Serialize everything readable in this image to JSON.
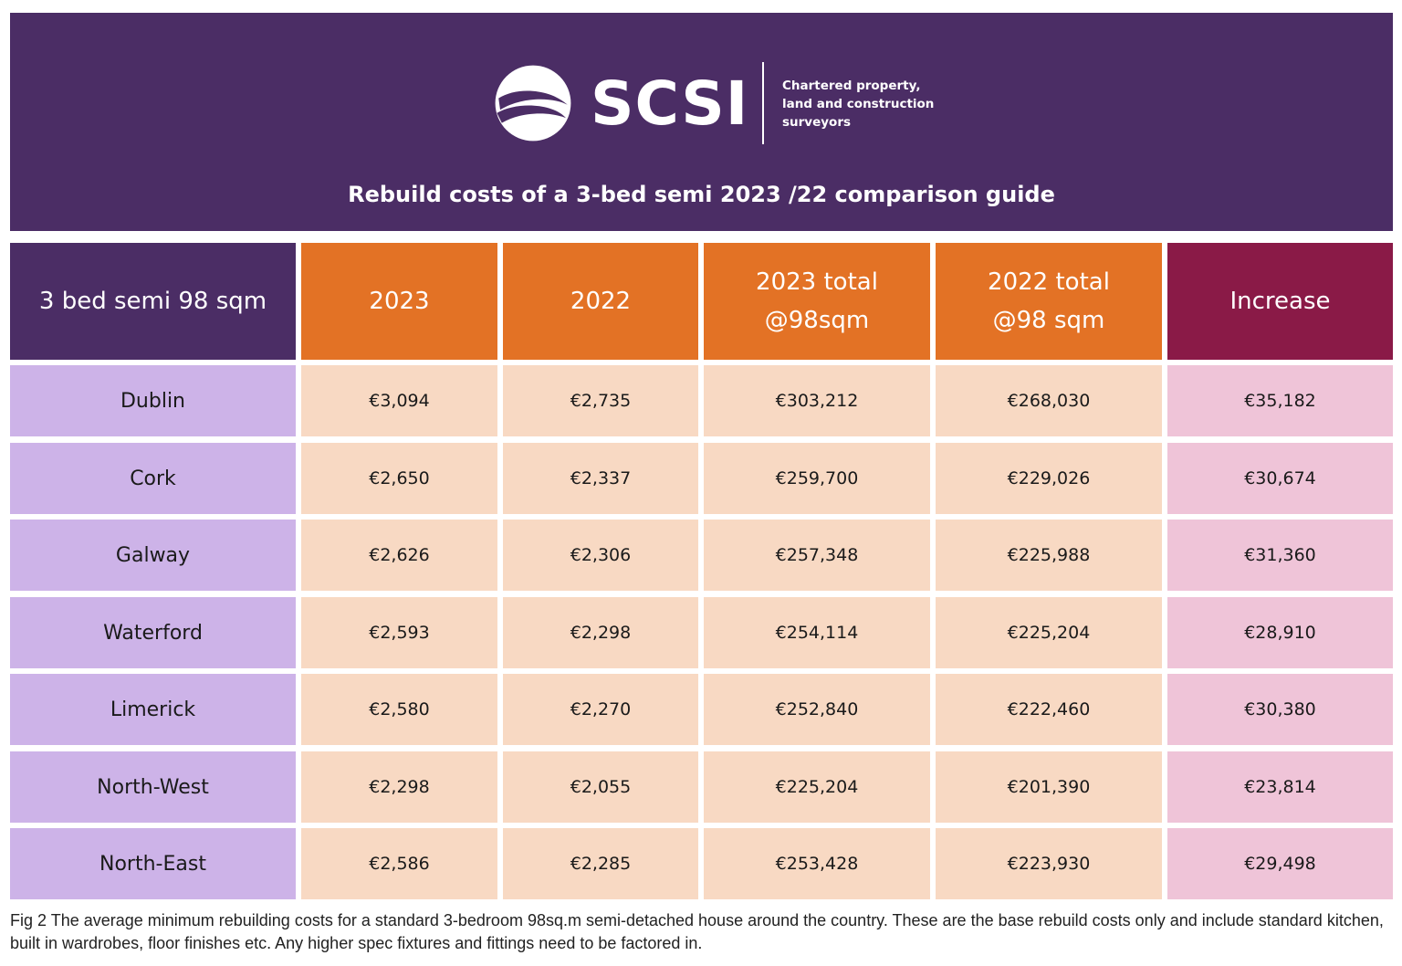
{
  "header": {
    "logo": {
      "wordmark": "SCSI",
      "tagline_lines": [
        "Chartered property,",
        "land and construction",
        "surveyors"
      ]
    },
    "title": "Rebuild costs of a 3-bed semi 2023 /22 comparison guide"
  },
  "colors": {
    "header_bg": "#4b2d65",
    "orange_header": "#e37225",
    "increase_header": "#8a1a47",
    "region_cell": "#cdb3e8",
    "value_cell": "#f8d9c3",
    "increase_cell": "#efc4d8"
  },
  "chart_data": {
    "type": "table",
    "title": "Rebuild costs of a 3-bed semi 2023 /22 comparison guide",
    "columns": [
      {
        "key": "region",
        "lines": [
          "3 bed semi 98 sqm"
        ]
      },
      {
        "key": "y2023",
        "lines": [
          "2023"
        ]
      },
      {
        "key": "y2022",
        "lines": [
          "2022"
        ]
      },
      {
        "key": "t2023",
        "lines": [
          "2023 total",
          "@98sqm"
        ]
      },
      {
        "key": "t2022",
        "lines": [
          "2022 total",
          "@98 sqm"
        ]
      },
      {
        "key": "increase",
        "lines": [
          "Increase"
        ]
      }
    ],
    "rows": [
      {
        "region": "Dublin",
        "y2023": "€3,094",
        "y2022": "€2,735",
        "t2023": "€303,212",
        "t2022": "€268,030",
        "increase": "€35,182"
      },
      {
        "region": "Cork",
        "y2023": "€2,650",
        "y2022": "€2,337",
        "t2023": "€259,700",
        "t2022": "€229,026",
        "increase": "€30,674"
      },
      {
        "region": "Galway",
        "y2023": "€2,626",
        "y2022": "€2,306",
        "t2023": "€257,348",
        "t2022": "€225,988",
        "increase": "€31,360"
      },
      {
        "region": "Waterford",
        "y2023": "€2,593",
        "y2022": "€2,298",
        "t2023": "€254,114",
        "t2022": "€225,204",
        "increase": "€28,910"
      },
      {
        "region": "Limerick",
        "y2023": "€2,580",
        "y2022": "€2,270",
        "t2023": "€252,840",
        "t2022": "€222,460",
        "increase": "€30,380"
      },
      {
        "region": "North-West",
        "y2023": "€2,298",
        "y2022": "€2,055",
        "t2023": "€225,204",
        "t2022": "€201,390",
        "increase": "€23,814"
      },
      {
        "region": "North-East",
        "y2023": "€2,586",
        "y2022": "€2,285",
        "t2023": "€253,428",
        "t2022": "€223,930",
        "increase": "€29,498"
      }
    ]
  },
  "caption": "Fig 2 The average minimum rebuilding costs for a standard 3-bedroom 98sq.m semi-detached house around the country. These are the base rebuild costs only and include standard kitchen, built in wardrobes, floor finishes etc. Any higher spec fixtures and fittings need to be factored in."
}
